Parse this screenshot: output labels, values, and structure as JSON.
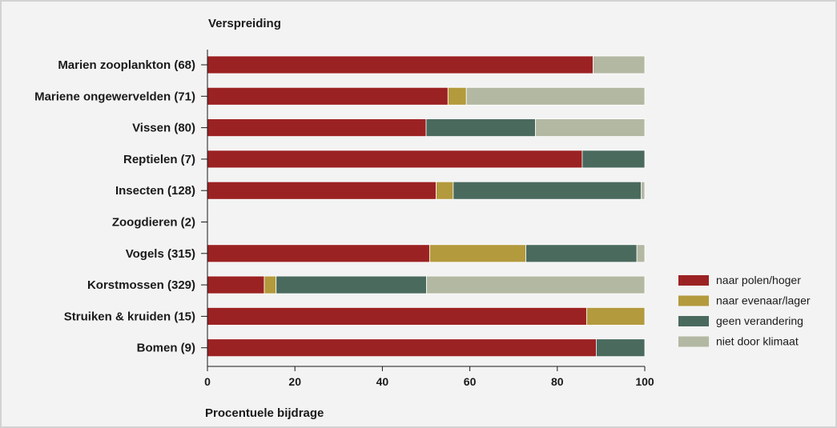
{
  "chart_data": {
    "type": "bar",
    "orientation": "horizontal",
    "stacked": true,
    "title": "Verspreiding",
    "xlabel": "Procentuele bijdrage",
    "ylabel": "",
    "xlim": [
      0,
      100
    ],
    "xticks": [
      0,
      20,
      40,
      60,
      80,
      100
    ],
    "grid": false,
    "legend_position": "right",
    "categories": [
      "Marien zooplankton (68)",
      "Mariene ongewervelden (71)",
      "Vissen (80)",
      "Reptielen (7)",
      "Insecten (128)",
      "Zoogdieren (2)",
      "Vogels (315)",
      "Korstmossen (329)",
      "Struiken & kruiden (15)",
      "Bomen (9)"
    ],
    "series": [
      {
        "name": "naar polen/hoger",
        "color": "#9b2223",
        "values": [
          88.2,
          55,
          50,
          85.7,
          52.3,
          0,
          50.8,
          13,
          86.7,
          88.9
        ]
      },
      {
        "name": "naar evenaar/lager",
        "color": "#b39a3d",
        "values": [
          0,
          4.2,
          0,
          0,
          3.9,
          0,
          22,
          2.7,
          13.3,
          0
        ]
      },
      {
        "name": "geen verandering",
        "color": "#4a6a5e",
        "values": [
          0,
          0,
          25,
          14.3,
          43.0,
          0,
          25.4,
          34.4,
          0,
          11.1
        ]
      },
      {
        "name": "niet door klimaat",
        "color": "#b3b8a2",
        "values": [
          11.8,
          40.8,
          25,
          0,
          0.8,
          0,
          1.8,
          49.9,
          0,
          0
        ]
      }
    ]
  }
}
